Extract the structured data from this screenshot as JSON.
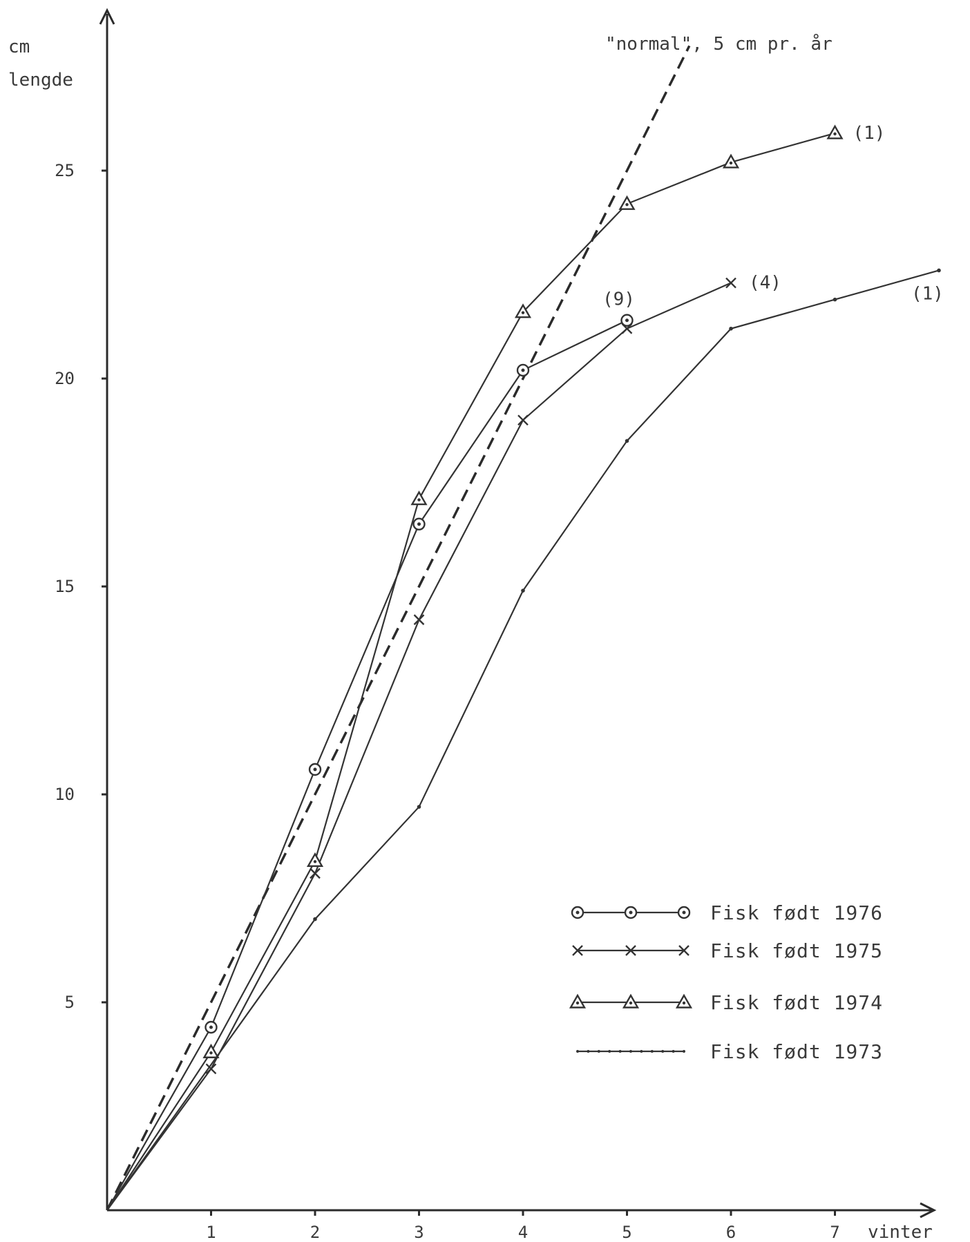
{
  "chart_data": {
    "type": "line",
    "title": "",
    "ylabel_line1": "cm",
    "ylabel_line2": "lengde",
    "xlabel": "vinter",
    "xlim": [
      0,
      8.1
    ],
    "ylim": [
      0,
      29
    ],
    "x_ticks": [
      1,
      2,
      3,
      4,
      5,
      6,
      7
    ],
    "y_ticks": [
      5,
      10,
      15,
      20,
      25
    ],
    "grid": false,
    "legend_position": "bottom-right",
    "series": [
      {
        "name": "Fisk født 1976",
        "marker": "circle-dot",
        "x": [
          0,
          1,
          2,
          3,
          4,
          5
        ],
        "y": [
          0,
          4.4,
          10.6,
          16.5,
          20.2,
          21.4
        ]
      },
      {
        "name": "Fisk født 1975",
        "marker": "x",
        "x": [
          0,
          1,
          2,
          3,
          4,
          5,
          6
        ],
        "y": [
          0,
          3.4,
          8.1,
          14.2,
          19.0,
          21.2,
          22.3
        ]
      },
      {
        "name": "Fisk født 1974",
        "marker": "triangle",
        "x": [
          0,
          1,
          2,
          3,
          4,
          5,
          6,
          7
        ],
        "y": [
          0,
          3.8,
          8.4,
          17.1,
          21.6,
          24.2,
          25.2,
          25.9
        ]
      },
      {
        "name": "Fisk født 1973",
        "marker": "dot",
        "x": [
          0,
          2,
          3,
          4,
          5,
          6,
          7,
          8
        ],
        "y": [
          0,
          7.0,
          9.7,
          14.9,
          18.5,
          21.2,
          21.9,
          22.6
        ]
      }
    ],
    "reference_line": {
      "label": "\"normal\", 5 cm pr. år",
      "x": [
        0,
        5.6
      ],
      "y": [
        0,
        28.0
      ]
    },
    "annotations": [
      {
        "text": "(9)",
        "series": 0,
        "x": 5,
        "y": 21.4
      },
      {
        "text": "(4)",
        "series": 1,
        "x": 6,
        "y": 22.3
      },
      {
        "text": "(1)",
        "series": 2,
        "x": 7,
        "y": 25.9
      },
      {
        "text": "(1)",
        "series": 3,
        "x": 8,
        "y": 22.6
      }
    ]
  }
}
